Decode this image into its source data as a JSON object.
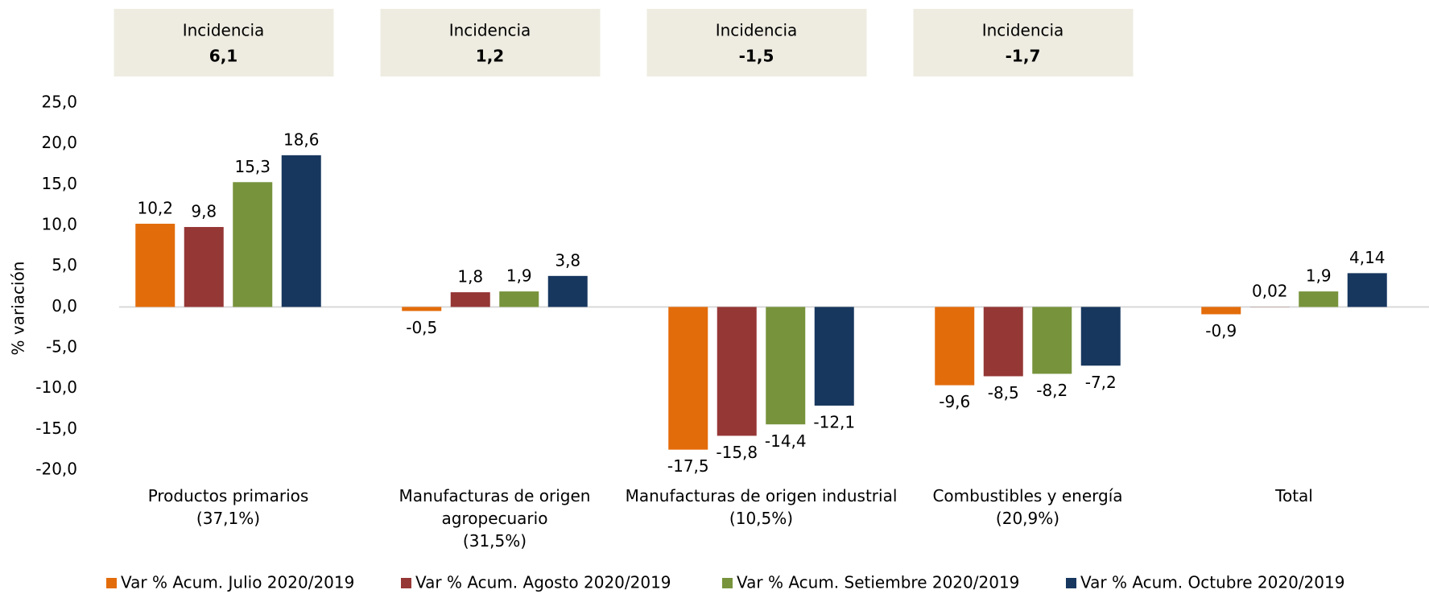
{
  "chart_data": {
    "type": "bar",
    "y_axis_label": "% variación",
    "categories": [
      "Productos primarios\n(37,1%)",
      "Manufacturas de origen\nagropecuario\n(31,5%)",
      "Manufacturas de origen industrial\n(10,5%)",
      "Combustibles y energía\n(20,9%)",
      "Total"
    ],
    "series": [
      {
        "name": "Var % Acum. Julio 2020/2019",
        "color": "#e36c0a",
        "values": [
          10.2,
          -0.5,
          -17.5,
          -9.6,
          -0.9
        ],
        "value_labels": [
          "10,2",
          "-0,5",
          "-17,5",
          "-9,6",
          "-0,9"
        ]
      },
      {
        "name": "Var % Acum. Agosto 2020/2019",
        "color": "#953735",
        "values": [
          9.8,
          1.8,
          -15.8,
          -8.5,
          0.02
        ],
        "value_labels": [
          "9,8",
          "1,8",
          "-15,8",
          "-8,5",
          "0,02"
        ]
      },
      {
        "name": "Var % Acum. Setiembre 2020/2019",
        "color": "#77933c",
        "values": [
          15.3,
          1.9,
          -14.4,
          -8.2,
          1.9
        ],
        "value_labels": [
          "15,3",
          "1,9",
          "-14,4",
          "-8,2",
          "1,9"
        ]
      },
      {
        "name": "Var % Acum. Octubre 2020/2019",
        "color": "#17375e",
        "values": [
          18.6,
          3.8,
          -12.1,
          -7.2,
          4.14
        ],
        "value_labels": [
          "18,6",
          "3,8",
          "-12,1",
          "-7,2",
          "4,14"
        ]
      }
    ],
    "annotations": [
      {
        "title": "Incidencia",
        "text": "6,1"
      },
      {
        "title": "Incidencia",
        "text": "1,2"
      },
      {
        "title": "Incidencia",
        "text": "-1,5"
      },
      {
        "title": "Incidencia",
        "text": "-1,7"
      }
    ],
    "ylim": [
      -20,
      25
    ],
    "yticks": [
      {
        "value": -20,
        "label": "-20,0"
      },
      {
        "value": -15,
        "label": "-15,0"
      },
      {
        "value": -10,
        "label": "-10,0"
      },
      {
        "value": -5,
        "label": "-5,0"
      },
      {
        "value": 0,
        "label": "0,0"
      },
      {
        "value": 5,
        "label": "5,0"
      },
      {
        "value": 10,
        "label": "10,0"
      },
      {
        "value": 15,
        "label": "15,0"
      },
      {
        "value": 20,
        "label": "20,0"
      },
      {
        "value": 25,
        "label": "25,0"
      }
    ],
    "legend": "bottom"
  }
}
